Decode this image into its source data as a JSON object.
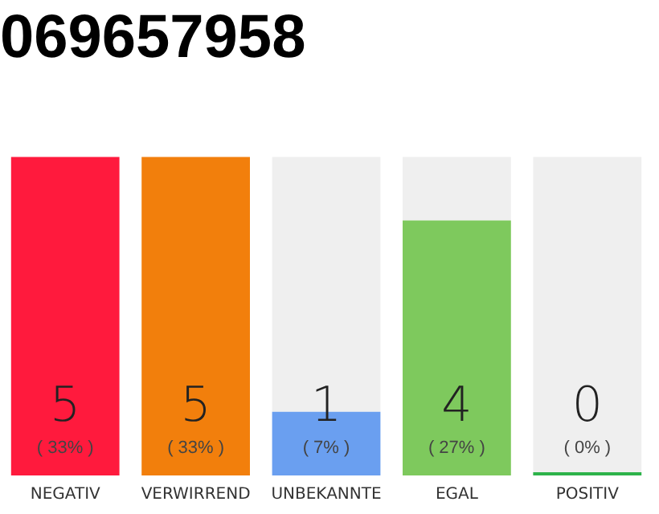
{
  "chart_data": {
    "type": "bar",
    "title": "069657958",
    "stacked": true,
    "categories": [
      "NEGATIV",
      "VERWIRREND",
      "UNBEKANNTE",
      "EGAL",
      "POSITIV"
    ],
    "series": [
      {
        "colors": [
          "#ff1a3d",
          "#f27f0c",
          "#6a9ff0",
          "#7ec95d",
          "#2db34a"
        ],
        "values": [
          5,
          5,
          1,
          4,
          0
        ],
        "value_labels": [
          "5",
          "5",
          "1",
          "4",
          "0"
        ]
      },
      {
        "color": "#efefef",
        "values": [
          0,
          0,
          4,
          1,
          5
        ]
      }
    ],
    "ylim": [
      0,
      5
    ],
    "grid": false,
    "legend": false,
    "annotations": [
      "( 33% )",
      "( 33% )",
      "( 7% )",
      "( 27% )",
      "( 0% )"
    ]
  }
}
